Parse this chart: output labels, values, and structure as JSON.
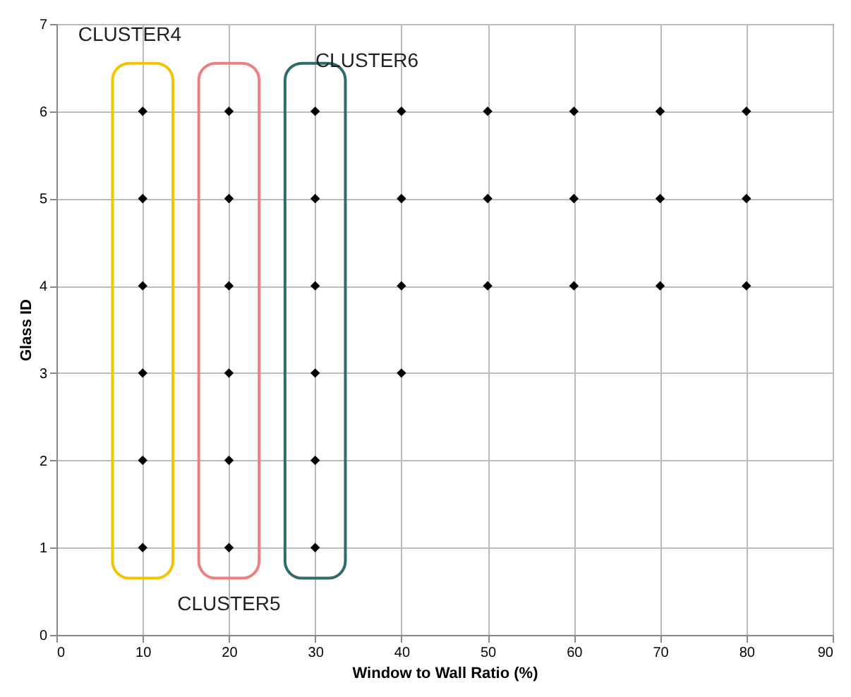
{
  "chart_data": {
    "type": "scatter",
    "xlabel": "Window to Wall Ratio (%)",
    "ylabel": "Glass ID",
    "series": [
      {
        "color": "#000000",
        "x": [
          10,
          10,
          10,
          10,
          10,
          10,
          20,
          20,
          20,
          20,
          20,
          20,
          30,
          30,
          30,
          30,
          30,
          30,
          40,
          40,
          40,
          40,
          50,
          50,
          50,
          60,
          60,
          60,
          70,
          70,
          70,
          80,
          80,
          80
        ],
        "values": [
          1,
          2,
          3,
          4,
          5,
          6,
          1,
          2,
          3,
          4,
          5,
          6,
          1,
          2,
          3,
          4,
          5,
          6,
          3,
          4,
          5,
          6,
          4,
          5,
          6,
          4,
          5,
          6,
          4,
          5,
          6,
          4,
          5,
          6
        ]
      }
    ],
    "xlim": [
      0,
      90
    ],
    "xticks": [
      0,
      10,
      20,
      30,
      40,
      50,
      60,
      70,
      80,
      90
    ],
    "ylim": [
      0,
      7
    ],
    "yticks": [
      0,
      1,
      2,
      3,
      4,
      5,
      6,
      7
    ],
    "grid": true,
    "marker": "diamond",
    "annotations": [
      "CLUSTER4",
      "CLUSTER5",
      "CLUSTER6"
    ]
  }
}
